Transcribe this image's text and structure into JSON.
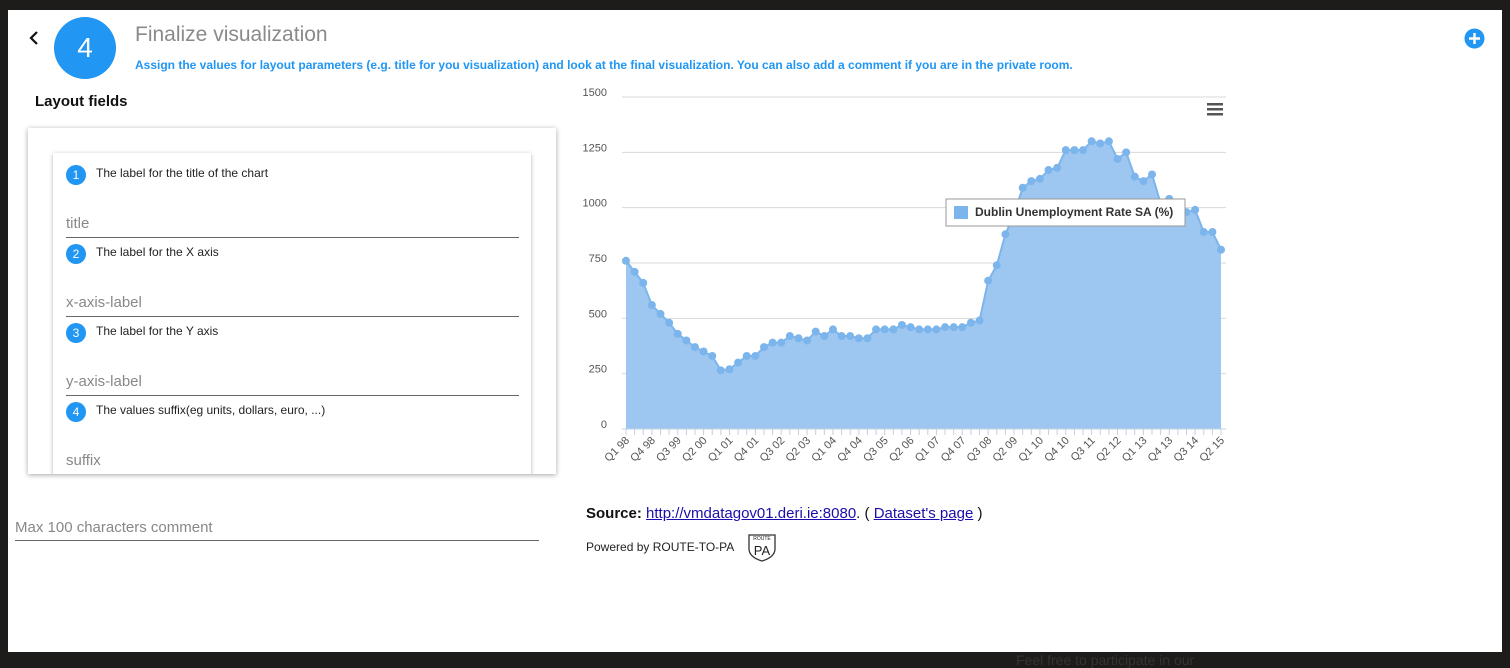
{
  "header": {
    "step": "4",
    "title": "Finalize visualization",
    "subtitle": "Assign the values for layout parameters (e.g. title for you visualization) and look at the final visualization. You can also add a comment if you are in the private room."
  },
  "layout": {
    "heading": "Layout fields",
    "fields": [
      {
        "number": "1",
        "label": "The label for the title of the chart",
        "placeholder": "title"
      },
      {
        "number": "2",
        "label": "The label for the X axis",
        "placeholder": "x-axis-label"
      },
      {
        "number": "3",
        "label": "The label for the Y axis",
        "placeholder": "y-axis-label"
      },
      {
        "number": "4",
        "label": "The values suffix(eg units, dollars, euro, ...)",
        "placeholder": "suffix"
      }
    ],
    "comment_placeholder": "Max 100 characters comment"
  },
  "chart_data": {
    "type": "area",
    "color": "#7cb5ec",
    "fill": "#9dc6f0",
    "grid": true,
    "legend": "upper right",
    "series": [
      {
        "name": "Dublin Unemployment Rate SA (%)",
        "color": "#7cb5ec",
        "values": [
          760,
          710,
          660,
          560,
          520,
          480,
          430,
          400,
          370,
          350,
          330,
          265,
          270,
          300,
          330,
          330,
          370,
          390,
          390,
          420,
          410,
          400,
          440,
          420,
          450,
          420,
          420,
          410,
          410,
          450,
          450,
          450,
          470,
          460,
          450,
          450,
          450,
          460,
          460,
          460,
          480,
          490,
          670,
          740,
          880,
          970,
          1090,
          1120,
          1130,
          1170,
          1180,
          1260,
          1260,
          1260,
          1300,
          1290,
          1300,
          1220,
          1250,
          1140,
          1120,
          1150,
          1020,
          1040,
          1000,
          980,
          990,
          890,
          890,
          810
        ]
      }
    ],
    "categories": [
      "Q1 98",
      null,
      null,
      "Q4 98",
      null,
      null,
      "Q3 99",
      null,
      null,
      "Q2 00",
      null,
      null,
      "Q1 01",
      null,
      null,
      "Q4 01",
      null,
      null,
      "Q3 02",
      null,
      null,
      "Q2 03",
      null,
      null,
      "Q1 04",
      null,
      null,
      "Q4 04",
      null,
      null,
      "Q3 05",
      null,
      null,
      "Q2 06",
      null,
      null,
      "Q1 07",
      null,
      null,
      "Q4 07",
      null,
      null,
      "Q3 08",
      null,
      null,
      "Q2 09",
      null,
      null,
      "Q1 10",
      null,
      null,
      "Q4 10",
      null,
      null,
      "Q3 11",
      null,
      null,
      "Q2 12",
      null,
      null,
      "Q1 13",
      null,
      null,
      "Q4 13",
      null,
      null,
      "Q3 14",
      null,
      null,
      "Q2 15"
    ],
    "ylim": [
      0,
      1500
    ],
    "yticks": [
      0,
      250,
      500,
      750,
      1000,
      1250,
      1500
    ]
  },
  "source": {
    "label": "Source:",
    "url": "http://vmdatagov01.deri.ie:8080",
    "sep": ". (",
    "dataset": "Dataset's page",
    "end": ")"
  },
  "powered": {
    "text": "Powered by ROUTE-TO-PA",
    "logo_top": "ROUTE",
    "logo": "PA"
  },
  "background_text": "Feel free to participate in our"
}
